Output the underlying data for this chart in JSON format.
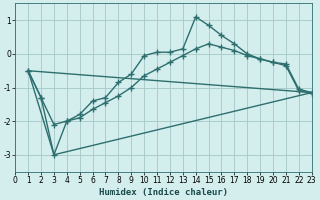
{
  "xlabel": "Humidex (Indice chaleur)",
  "background_color": "#d4eeee",
  "grid_color": "#aacccc",
  "line_color": "#2d6e6e",
  "xlim": [
    0,
    23
  ],
  "ylim": [
    -3.5,
    1.5
  ],
  "yticks": [
    -3,
    -2,
    -1,
    0,
    1
  ],
  "xticks": [
    0,
    1,
    2,
    3,
    4,
    5,
    6,
    7,
    8,
    9,
    10,
    11,
    12,
    13,
    14,
    15,
    16,
    17,
    18,
    19,
    20,
    21,
    22,
    23
  ],
  "series1_x": [
    1,
    2,
    3,
    4,
    5,
    6,
    7,
    8,
    9,
    10,
    11,
    12,
    13,
    14,
    15,
    16,
    17,
    18,
    19,
    20,
    21,
    22,
    23
  ],
  "series1_y": [
    -0.5,
    -1.3,
    -2.1,
    -2.0,
    -1.8,
    -1.4,
    -1.3,
    -0.85,
    -0.6,
    -0.05,
    0.05,
    0.05,
    0.15,
    1.1,
    0.85,
    0.55,
    0.3,
    0.0,
    -0.15,
    -0.25,
    -0.3,
    -1.05,
    -1.15
  ],
  "series2_x": [
    1,
    2,
    3,
    4,
    5,
    6,
    7,
    8,
    9,
    10,
    11,
    12,
    13,
    14,
    15,
    16,
    17,
    18,
    19,
    20,
    21,
    22,
    23
  ],
  "series2_y": [
    -0.5,
    -1.3,
    -3.0,
    -2.0,
    -1.9,
    -1.65,
    -1.45,
    -1.25,
    -1.0,
    -0.65,
    -0.45,
    -0.25,
    -0.05,
    0.15,
    0.3,
    0.2,
    0.1,
    -0.05,
    -0.15,
    -0.25,
    -0.35,
    -1.1,
    -1.15
  ],
  "series3_x": [
    1,
    3,
    23
  ],
  "series3_y": [
    -0.5,
    -3.0,
    -1.15
  ],
  "series4_x": [
    1,
    23
  ],
  "series4_y": [
    -0.5,
    -1.15
  ]
}
